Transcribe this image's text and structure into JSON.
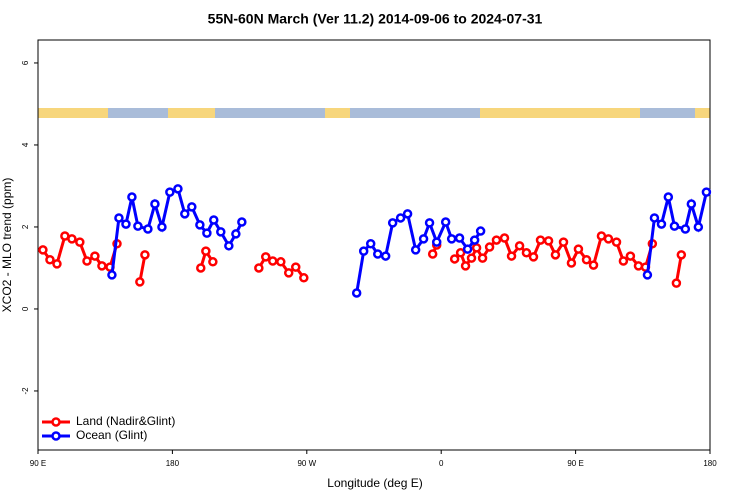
{
  "chart_data": {
    "type": "line",
    "title": "55N-60N March (Ver 11.2)   2014-09-06 to 2024-07-31",
    "x_label": "Longitude (deg E)",
    "y_label": "XCO2 - MLO trend (ppm)",
    "xlim": [
      90,
      540
    ],
    "xticks": [
      {
        "value": 90,
        "label": "90 E"
      },
      180,
      {
        "value": 270,
        "label": "90 W"
      },
      {
        "value": 360,
        "label": "0"
      },
      {
        "value": 450,
        "label": "90 E"
      },
      {
        "value": 540,
        "label": "180"
      }
    ],
    "ylim": [
      -3.44,
      6.56
    ],
    "yticks": [
      -2,
      0,
      2,
      4,
      6
    ],
    "legend": "bottom-left",
    "series": [
      {
        "name": "Land (Nadir&Glint)",
        "color": "#ff0000",
        "x": [
          93.3,
          98,
          102.7,
          108,
          112.7,
          118,
          122.8,
          128.1,
          132.8,
          138.2,
          142.9,
          null,
          158.2,
          161.6,
          null,
          199,
          202.4,
          207.1,
          null,
          237.9,
          242.5,
          247.2,
          252.6,
          257.9,
          262.6,
          268,
          null,
          354.3,
          357,
          null,
          369,
          373,
          376.3,
          380.3,
          383.7,
          387.7,
          392.4,
          397,
          402.4,
          407.1,
          412.5,
          417.1,
          421.8,
          426.5,
          431.9,
          436.5,
          441.9,
          447.2,
          451.9,
          457.3,
          462,
          467.3,
          472,
          477.4,
          482,
          486.7,
          492.1,
          496.8,
          501.4,
          null,
          517.5,
          520.8
        ],
        "values": [
          1.44,
          1.2,
          1.1,
          1.78,
          1.71,
          1.63,
          1.17,
          1.29,
          1.05,
          1.02,
          1.59,
          null,
          0.66,
          1.32,
          null,
          1.0,
          1.41,
          1.15,
          null,
          1.0,
          1.27,
          1.17,
          1.15,
          0.88,
          1.02,
          0.76,
          null,
          1.34,
          1.56,
          null,
          1.22,
          1.37,
          1.05,
          1.24,
          1.49,
          1.24,
          1.51,
          1.68,
          1.73,
          1.29,
          1.54,
          1.37,
          1.27,
          1.68,
          1.66,
          1.32,
          1.63,
          1.12,
          1.46,
          1.2,
          1.07,
          1.78,
          1.71,
          1.63,
          1.17,
          1.29,
          1.05,
          1.02,
          1.59,
          null,
          0.63,
          1.32
        ]
      },
      {
        "name": "Ocean (Glint)",
        "color": "#0000ff",
        "x": [
          139.5,
          144.2,
          148.9,
          152.9,
          156.9,
          163.6,
          168.3,
          173,
          178.3,
          183.7,
          188.3,
          193,
          198.4,
          203.1,
          207.7,
          212.4,
          217.8,
          222.5,
          226.5,
          null,
          303.4,
          308.1,
          312.8,
          317.5,
          322.8,
          327.5,
          332.8,
          337.5,
          342.9,
          348.2,
          352.2,
          357,
          363,
          367,
          372.3,
          377.7,
          382.4,
          386.4,
          null,
          498.1,
          502.8,
          507.5,
          512.1,
          516.2,
          523.5,
          527.5,
          532.2,
          537.6
        ],
        "values": [
          0.83,
          2.22,
          2.07,
          2.73,
          2.02,
          1.95,
          2.56,
          2.0,
          2.85,
          2.93,
          2.32,
          2.49,
          2.05,
          1.85,
          2.17,
          1.88,
          1.54,
          1.83,
          2.12,
          null,
          0.39,
          1.41,
          1.59,
          1.34,
          1.29,
          2.1,
          2.22,
          2.32,
          1.44,
          1.71,
          2.1,
          1.63,
          2.12,
          1.71,
          1.73,
          1.46,
          1.68,
          1.9,
          null,
          0.83,
          2.22,
          2.07,
          2.73,
          2.02,
          1.95,
          2.56,
          2.0,
          2.85
        ]
      }
    ]
  }
}
